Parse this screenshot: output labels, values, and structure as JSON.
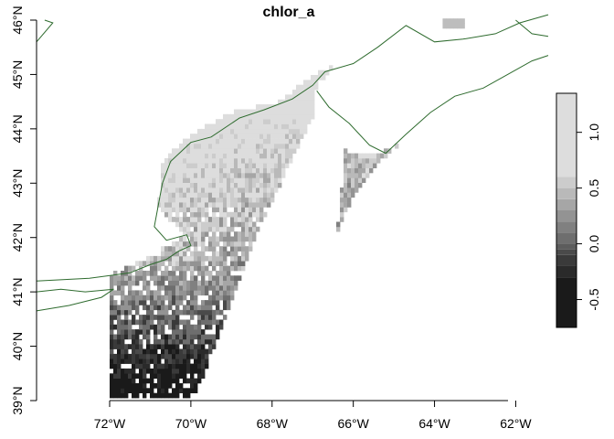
{
  "map": {
    "title": "chlor_a",
    "x_ticks": [
      "72°W",
      "70°W",
      "68°W",
      "66°W",
      "64°W",
      "62°W"
    ],
    "y_ticks": [
      "39°N",
      "40°N",
      "41°N",
      "42°N",
      "43°N",
      "44°N",
      "45°N",
      "46°N"
    ],
    "x_range": [
      -73.8,
      -61.2
    ],
    "y_range": [
      39.0,
      46.0
    ],
    "coastline_color": "#2e6b2e",
    "legend": {
      "ticks": [
        "-0.5",
        "0.0",
        "0.5",
        "1.0"
      ],
      "tick_values": [
        -0.5,
        0.0,
        0.5,
        1.0
      ],
      "range": [
        -0.75,
        1.35
      ],
      "colors": [
        "#1a1a1a",
        "#2a2a2a",
        "#3a3a3a",
        "#4a4a4a",
        "#5c5c5c",
        "#6e6e6e",
        "#808080",
        "#939393",
        "#a6a6a6",
        "#b9b9b9",
        "#cccccc",
        "#dddddd"
      ],
      "breaks": [
        -0.75,
        -0.3,
        -0.2,
        -0.1,
        -0.05,
        0.0,
        0.1,
        0.2,
        0.3,
        0.4,
        0.5,
        0.6,
        1.35
      ]
    }
  }
}
